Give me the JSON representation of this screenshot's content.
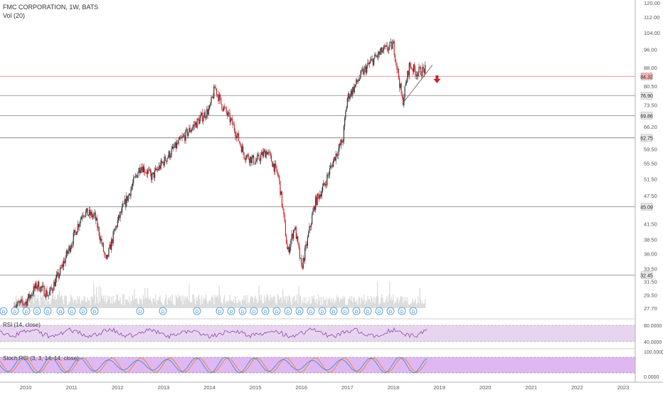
{
  "header": {
    "title": "FMC CORPORATION, 1W, BATS",
    "volume_label": "Vol (20)"
  },
  "colors": {
    "candle_up": "#333333",
    "candle_down": "#c6262e",
    "hline": "#666666",
    "resistance_line": "#e57373",
    "price_label_bg": "#e8e8e8",
    "last_price_bg": "#f6b7b7",
    "arrow": "#c6262e",
    "rsi_line": "#8e44ad",
    "rsi_band": "#e7d5f0",
    "stoch_band": "#dfb8f2",
    "stoch_k": "#1e88e5",
    "stoch_d": "#f57c00",
    "dividend": "#3a8fd0",
    "volume": "#d9d9d9"
  },
  "panes": {
    "rsi_label": "RSI (14, close)",
    "stoch_label": "Stoch RSI (3, 3, 14, 14, close)",
    "rsi_ticks": [
      "80.0000",
      "40.0000"
    ],
    "stoch_ticks": [
      "100.0000",
      "0.0000"
    ],
    "dividend_marker": "D",
    "dividend_count": 26
  },
  "chart_data": {
    "type": "line",
    "title": "FMC CORPORATION, 1W, BATS",
    "y_ticks": [
      "120.00",
      "112.00",
      "104.00",
      "96.00",
      "88.00",
      "80.50",
      "73.50",
      "66.20",
      "59.50",
      "55.50",
      "51.50",
      "47.50",
      "41.50",
      "38.50",
      "36.00",
      "33.50",
      "31.50",
      "29.50",
      "27.70"
    ],
    "x_ticks": [
      "2010",
      "2011",
      "2012",
      "2013",
      "2014",
      "2015",
      "2016",
      "2017",
      "2018",
      "2019",
      "2020",
      "2021",
      "2022",
      "2023"
    ],
    "ylim": [
      27.7,
      120
    ],
    "scale": "log",
    "horizontal_levels": [
      {
        "value": 84.32,
        "label": "84.32",
        "kind": "last"
      },
      {
        "value": 76.9,
        "label": "76.90",
        "kind": "level"
      },
      {
        "value": 69.86,
        "label": "69.86",
        "kind": "level"
      },
      {
        "value": 62.75,
        "label": "62.75",
        "kind": "level"
      },
      {
        "value": 45.09,
        "label": "45.09",
        "kind": "level"
      },
      {
        "value": 32.45,
        "label": "32.45",
        "kind": "level"
      }
    ],
    "series": [
      {
        "x": [
          2009.75,
          2010.0,
          2010.25,
          2010.5,
          2010.75,
          2011.0,
          2011.25,
          2011.5,
          2011.75,
          2012.0,
          2012.25,
          2012.5,
          2012.75,
          2013.0,
          2013.25,
          2013.5,
          2013.75,
          2014.0,
          2014.12,
          2014.25,
          2014.5,
          2014.75,
          2015.0,
          2015.25,
          2015.5,
          2015.7,
          2015.85,
          2016.0,
          2016.1,
          2016.3,
          2016.5,
          2016.75,
          2016.9,
          2017.0,
          2017.15,
          2017.3,
          2017.5,
          2017.75,
          2018.0,
          2018.08,
          2018.2,
          2018.35,
          2018.5,
          2018.7
        ],
        "values": [
          28.0,
          28.5,
          31.0,
          29.5,
          33.0,
          38.0,
          44.0,
          43.0,
          34.5,
          42.0,
          48.0,
          55.0,
          52.0,
          56.0,
          60.0,
          64.0,
          68.0,
          72.0,
          80.0,
          74.0,
          67.0,
          58.0,
          56.0,
          59.0,
          52.0,
          36.0,
          41.0,
          33.5,
          37.0,
          46.0,
          50.0,
          58.0,
          62.0,
          76.0,
          80.0,
          85.0,
          90.0,
          95.0,
          98.0,
          88.0,
          74.0,
          89.0,
          86.0,
          87.0
        ]
      }
    ]
  }
}
